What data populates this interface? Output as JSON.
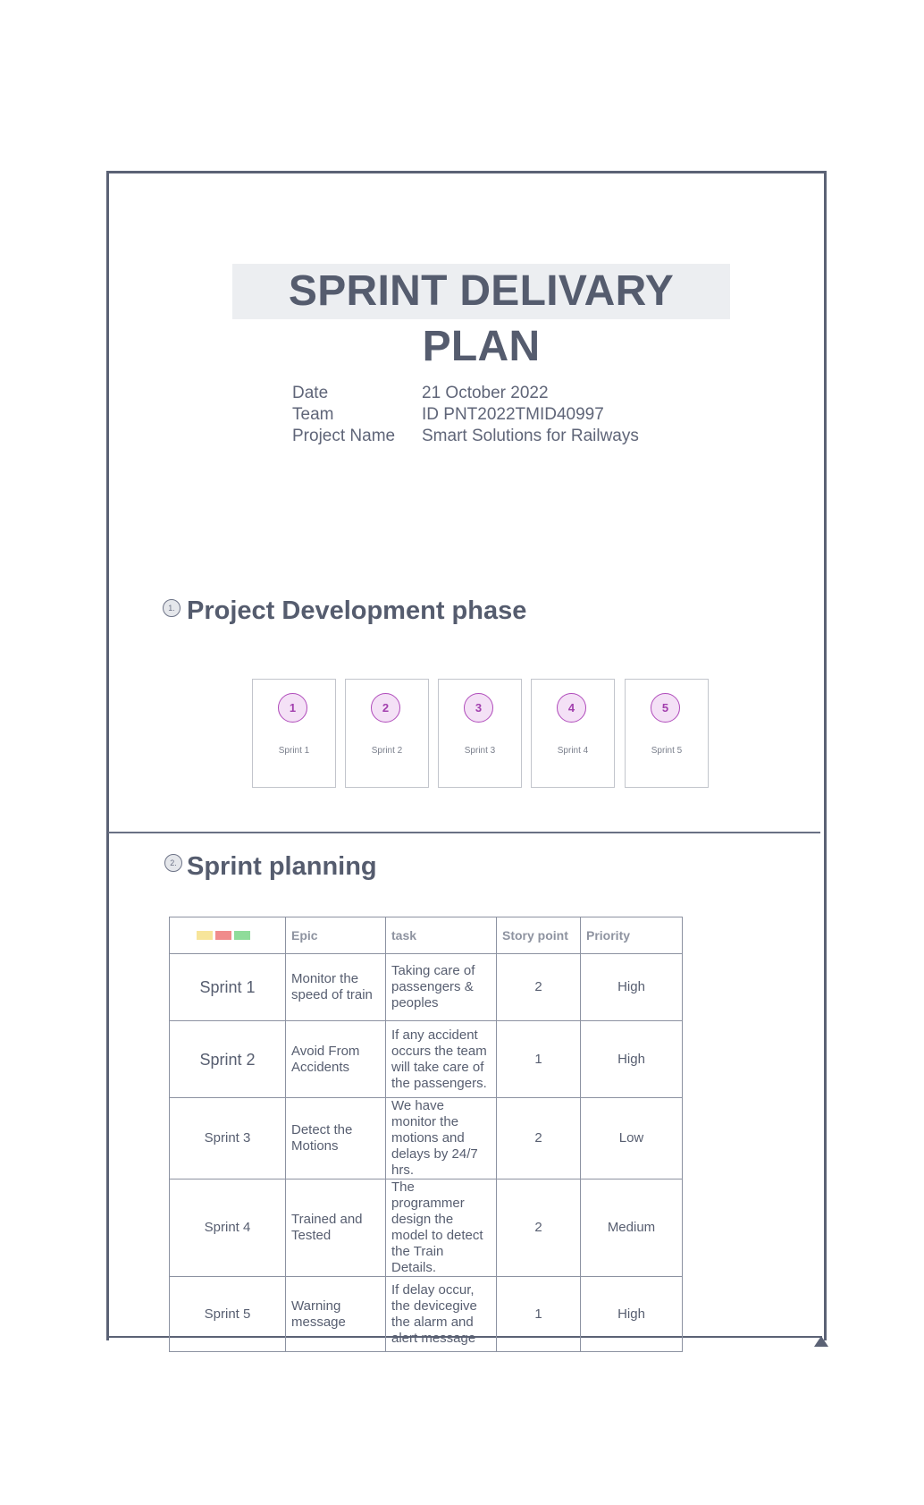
{
  "document": {
    "title": "SPRINT DELIVARY PLAN",
    "meta": [
      {
        "label": "Date",
        "value": "21 October 2022"
      },
      {
        "label": "Team",
        "value": "ID PNT2022TMID40997"
      },
      {
        "label": "Project Name",
        "value": "Smart Solutions for Railways"
      }
    ]
  },
  "sections": [
    {
      "number": "1.",
      "title": "Project Development phase"
    },
    {
      "number": "2.",
      "title": "Sprint planning"
    }
  ],
  "sprints": [
    {
      "number": "1",
      "label": "Sprint 1"
    },
    {
      "number": "2",
      "label": "Sprint 2"
    },
    {
      "number": "3",
      "label": "Sprint 3"
    },
    {
      "number": "4",
      "label": "Sprint 4"
    },
    {
      "number": "5",
      "label": "Sprint 5"
    }
  ],
  "table": {
    "legend_colors": [
      "#f7e59a",
      "#f08c8c",
      "#8fdc9a"
    ],
    "headers": [
      "",
      "Epic",
      "task",
      "Story point",
      "Priority"
    ],
    "rows": [
      {
        "sprint": "Sprint 1",
        "epic": "Monitor the speed of train",
        "task": "Taking care of passengers & peoples",
        "points": "2",
        "priority": "High"
      },
      {
        "sprint": "Sprint  2",
        "epic": "Avoid From Accidents",
        "task": "If any accident occurs the team will take care of the passengers.",
        "points": "1",
        "priority": "High"
      },
      {
        "sprint": "Sprint 3",
        "epic": "Detect the Motions",
        "task": "We have monitor the motions and delays by 24/7 hrs.",
        "points": "2",
        "priority": "Low"
      },
      {
        "sprint": "Sprint 4",
        "epic": "Trained and Tested",
        "task": "The programmer design the model to detect the Train Details.",
        "points": "2",
        "priority": "Medium"
      },
      {
        "sprint": "Sprint 5",
        "epic": "Warning message",
        "task": "If delay occur, the devicegive the alarm and alert message",
        "points": "1",
        "priority": "High"
      }
    ]
  }
}
